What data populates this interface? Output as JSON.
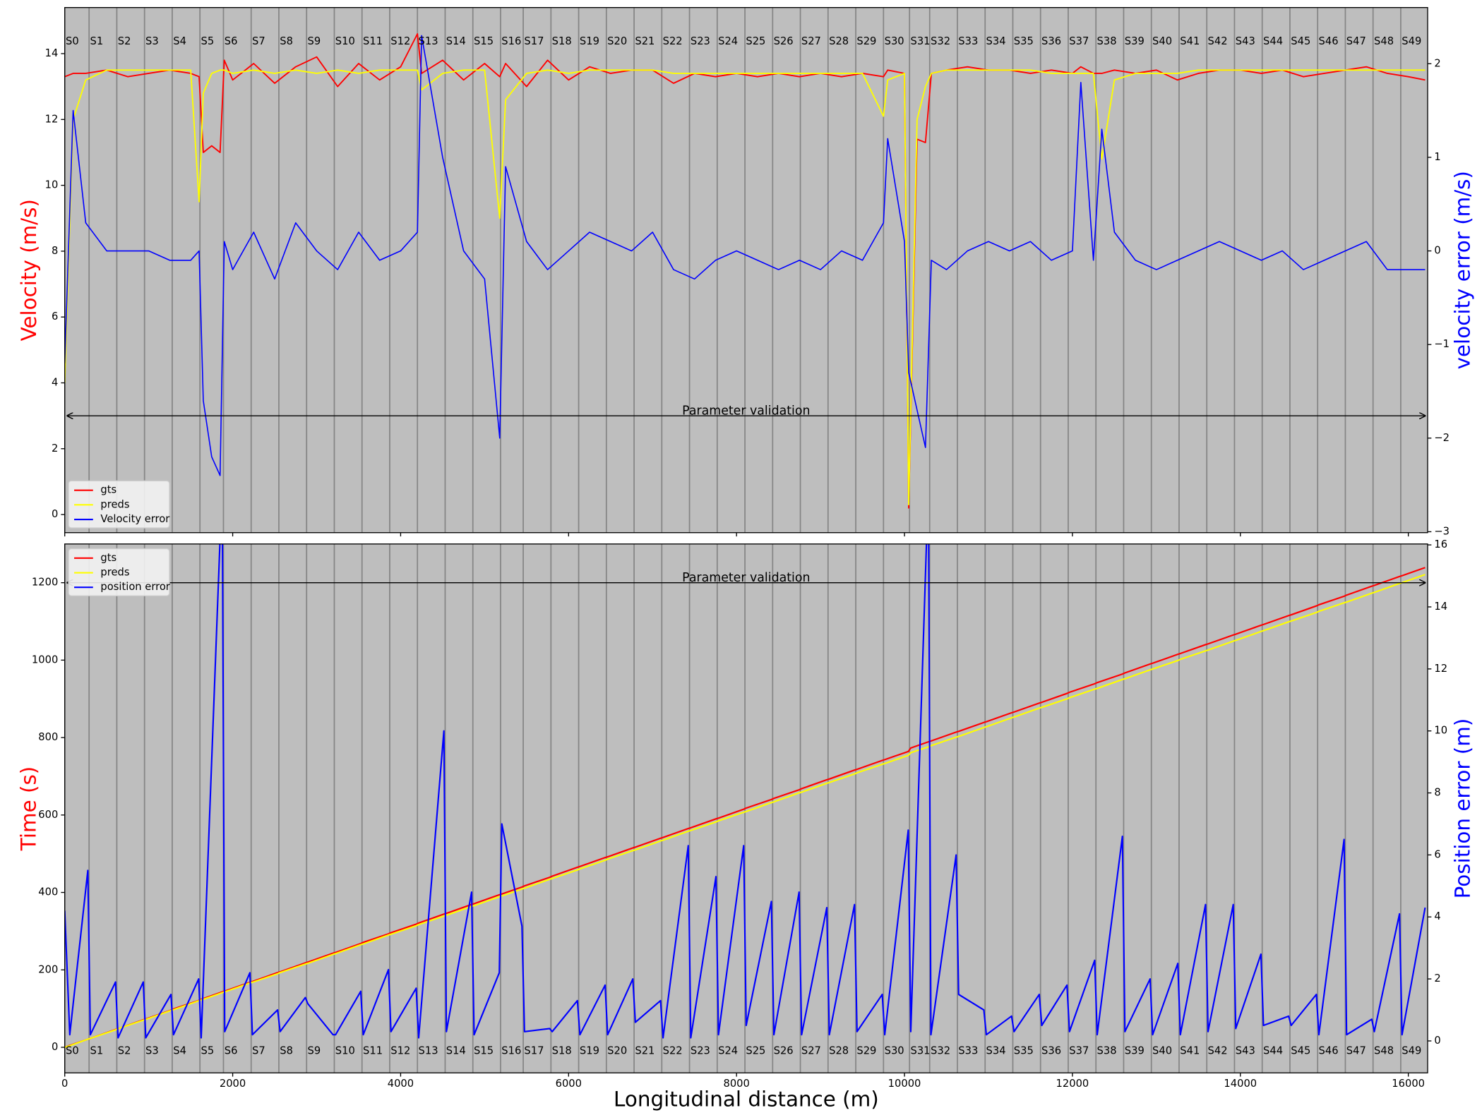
{
  "chart_data": [
    {
      "type": "line",
      "ylabel": "Velocity (m/s)",
      "y2label": "velocity error (m/s)",
      "background": "#bebebe",
      "legend": "lower left",
      "xlim": [
        0,
        16230
      ],
      "xticks": [
        0,
        2000,
        4000,
        6000,
        8000,
        10000,
        12000,
        14000,
        16000
      ],
      "ylim": [
        -0.55,
        15.4
      ],
      "yticks": [
        0,
        2,
        4,
        6,
        8,
        10,
        12,
        14
      ],
      "y2lim": [
        -3.01,
        2.6
      ],
      "y2ticks": [
        {
          "value": -3,
          "label": "−3"
        },
        {
          "value": -2,
          "label": "−2"
        },
        {
          "value": -1,
          "label": "−1"
        },
        0,
        1,
        2
      ],
      "annotation": {
        "text": "Parameter validation",
        "x": [
          0,
          16230
        ],
        "y": 3
      },
      "section_labels": [
        "S0",
        "S1",
        "S2",
        "S3",
        "S4",
        "S5",
        "S6",
        "S7",
        "S8",
        "S9",
        "S10",
        "S11",
        "S12",
        "S13",
        "S14",
        "S15",
        "S16",
        "S17",
        "S18",
        "S19",
        "S20",
        "S21",
        "S22",
        "S23",
        "S24",
        "S25",
        "S26",
        "S27",
        "S28",
        "S29",
        "S30",
        "S31",
        "S32",
        "S33",
        "S34",
        "S35",
        "S36",
        "S37",
        "S38",
        "S39",
        "S40",
        "S41",
        "S42",
        "S43",
        "S44",
        "S45",
        "S46",
        "S47",
        "S48",
        "S49"
      ],
      "section_starts": [
        0,
        290,
        620,
        950,
        1280,
        1610,
        1890,
        2220,
        2550,
        2880,
        3210,
        3540,
        3870,
        4200,
        4530,
        4860,
        5190,
        5460,
        5790,
        6120,
        6450,
        6780,
        7110,
        7440,
        7770,
        8100,
        8430,
        8760,
        9090,
        9420,
        9750,
        10060,
        10300,
        10630,
        10960,
        11290,
        11620,
        11950,
        12280,
        12610,
        12940,
        13270,
        13600,
        13930,
        14260,
        14590,
        14920,
        15250,
        15580,
        15910
      ],
      "x": [
        0,
        100,
        250,
        500,
        750,
        1000,
        1250,
        1500,
        1600,
        1650,
        1750,
        1850,
        1900,
        2000,
        2250,
        2500,
        2750,
        3000,
        3250,
        3500,
        3750,
        4000,
        4200,
        4250,
        4500,
        4750,
        5000,
        5180,
        5250,
        5500,
        5750,
        6000,
        6250,
        6500,
        6750,
        7000,
        7250,
        7500,
        7750,
        8000,
        8250,
        8500,
        8750,
        9000,
        9250,
        9500,
        9750,
        9800,
        10000,
        10050,
        10150,
        10250,
        10320,
        10500,
        10750,
        11000,
        11250,
        11500,
        11750,
        12000,
        12100,
        12250,
        12350,
        12500,
        12750,
        13000,
        13250,
        13500,
        13750,
        14000,
        14250,
        14500,
        14750,
        15000,
        15250,
        15500,
        15750,
        16000,
        16200
      ],
      "series": [
        {
          "name": "gts",
          "color": "#ff0000",
          "width": 1.4,
          "values": [
            13.3,
            13.4,
            13.4,
            13.5,
            13.3,
            13.4,
            13.5,
            13.4,
            13.3,
            11.0,
            11.2,
            11.0,
            13.8,
            13.2,
            13.7,
            13.1,
            13.6,
            13.9,
            13.0,
            13.7,
            13.2,
            13.6,
            14.6,
            13.4,
            13.8,
            13.2,
            13.7,
            13.3,
            13.7,
            13.0,
            13.8,
            13.2,
            13.6,
            13.4,
            13.5,
            13.5,
            13.1,
            13.4,
            13.3,
            13.4,
            13.3,
            13.4,
            13.3,
            13.4,
            13.3,
            13.4,
            13.3,
            13.5,
            13.4,
            0.2,
            11.4,
            11.3,
            13.4,
            13.5,
            13.6,
            13.5,
            13.5,
            13.4,
            13.5,
            13.4,
            13.6,
            13.4,
            13.4,
            13.5,
            13.4,
            13.5,
            13.2,
            13.4,
            13.5,
            13.5,
            13.4,
            13.5,
            13.3,
            13.4,
            13.5,
            13.6,
            13.4,
            13.3,
            13.2
          ]
        },
        {
          "name": "preds",
          "color": "#ffff00",
          "width": 1.4,
          "values": [
            4.0,
            12.0,
            13.2,
            13.5,
            13.5,
            13.5,
            13.5,
            13.5,
            9.5,
            12.8,
            13.4,
            13.5,
            13.5,
            13.4,
            13.5,
            13.4,
            13.5,
            13.4,
            13.5,
            13.4,
            13.5,
            13.5,
            13.5,
            12.9,
            13.4,
            13.5,
            13.5,
            9.0,
            12.6,
            13.4,
            13.5,
            13.4,
            13.5,
            13.5,
            13.5,
            13.5,
            13.4,
            13.4,
            13.4,
            13.4,
            13.4,
            13.4,
            13.4,
            13.4,
            13.4,
            13.4,
            12.1,
            13.2,
            13.4,
            0.3,
            12.0,
            13.0,
            13.4,
            13.5,
            13.5,
            13.5,
            13.5,
            13.5,
            13.4,
            13.4,
            13.4,
            13.4,
            10.8,
            13.2,
            13.4,
            13.4,
            13.4,
            13.5,
            13.5,
            13.5,
            13.5,
            13.5,
            13.5,
            13.5,
            13.5,
            13.5,
            13.5,
            13.5,
            13.5
          ]
        },
        {
          "name": "Velocity error",
          "color": "#0000ff",
          "width": 1.2,
          "axis": "y2",
          "values": [
            -1.2,
            1.5,
            0.3,
            0,
            0,
            0,
            -0.1,
            -0.1,
            0,
            -1.6,
            -2.2,
            -2.4,
            0.1,
            -0.2,
            0.2,
            -0.3,
            0.3,
            0,
            -0.2,
            0.2,
            -0.1,
            0,
            0.2,
            2.3,
            1.0,
            0,
            -0.3,
            -2.0,
            0.9,
            0.1,
            -0.2,
            0,
            0.2,
            0.1,
            0,
            0.2,
            -0.2,
            -0.3,
            -0.1,
            0,
            -0.1,
            -0.2,
            -0.1,
            -0.2,
            0,
            -0.1,
            0.3,
            1.2,
            0.1,
            -1.3,
            -1.7,
            -2.1,
            -0.1,
            -0.2,
            0,
            0.1,
            0,
            0.1,
            -0.1,
            0,
            1.8,
            -0.1,
            1.3,
            0.2,
            -0.1,
            -0.2,
            -0.1,
            0,
            0.1,
            0,
            -0.1,
            0,
            -0.2,
            -0.1,
            0,
            0.1,
            -0.2,
            -0.2,
            -0.2
          ]
        }
      ]
    },
    {
      "type": "line",
      "xlabel": "Longitudinal distance (m)",
      "ylabel": "Time (s)",
      "y2label": "Position error (m)",
      "background": "#bebebe",
      "legend": "upper left",
      "xlim": [
        0,
        16230
      ],
      "xticks": [
        0,
        2000,
        4000,
        6000,
        8000,
        10000,
        12000,
        14000,
        16000
      ],
      "ylim": [
        -66,
        1300
      ],
      "yticks": [
        0,
        200,
        400,
        600,
        800,
        1000,
        1200
      ],
      "y2lim": [
        -1.03,
        16.03
      ],
      "y2ticks": [
        0,
        2,
        4,
        6,
        8,
        10,
        12,
        14,
        16
      ],
      "annotation": {
        "text": "Parameter validation",
        "x": [
          0,
          16230
        ],
        "y": 1200
      },
      "section_labels": [
        "S0",
        "S1",
        "S2",
        "S3",
        "S4",
        "S5",
        "S6",
        "S7",
        "S8",
        "S9",
        "S10",
        "S11",
        "S12",
        "S13",
        "S14",
        "S15",
        "S16",
        "S17",
        "S18",
        "S19",
        "S20",
        "S21",
        "S22",
        "S23",
        "S24",
        "S25",
        "S26",
        "S27",
        "S28",
        "S29",
        "S30",
        "S31",
        "S32",
        "S33",
        "S34",
        "S35",
        "S36",
        "S37",
        "S38",
        "S39",
        "S40",
        "S41",
        "S42",
        "S43",
        "S44",
        "S45",
        "S46",
        "S47",
        "S48",
        "S49"
      ],
      "section_starts": [
        0,
        290,
        620,
        950,
        1280,
        1610,
        1890,
        2220,
        2550,
        2880,
        3210,
        3540,
        3870,
        4200,
        4530,
        4860,
        5190,
        5460,
        5790,
        6120,
        6450,
        6780,
        7110,
        7440,
        7770,
        8100,
        8430,
        8760,
        9090,
        9420,
        9750,
        10060,
        10300,
        10630,
        10960,
        11290,
        11620,
        11950,
        12280,
        12610,
        12940,
        13270,
        13600,
        13930,
        14260,
        14590,
        14920,
        15250,
        15580,
        15910
      ],
      "x": [
        0,
        60,
        275,
        305,
        605,
        635,
        935,
        965,
        1265,
        1295,
        1595,
        1625,
        1875,
        1905,
        2205,
        2235,
        2535,
        2565,
        2865,
        2895,
        3195,
        3225,
        3525,
        3555,
        3855,
        3885,
        4185,
        4215,
        4515,
        4545,
        4845,
        4875,
        5175,
        5205,
        5445,
        5475,
        5775,
        5805,
        6105,
        6135,
        6435,
        6465,
        6765,
        6795,
        7095,
        7125,
        7425,
        7455,
        7755,
        7785,
        8085,
        8115,
        8415,
        8445,
        8745,
        8775,
        9075,
        9105,
        9405,
        9435,
        9735,
        9765,
        10045,
        10075,
        10285,
        10315,
        10615,
        10645,
        10945,
        10975,
        11275,
        11305,
        11605,
        11635,
        11935,
        11965,
        12265,
        12295,
        12595,
        12625,
        12925,
        12955,
        13255,
        13285,
        13585,
        13615,
        13915,
        13945,
        14245,
        14275,
        14575,
        14605,
        14905,
        14935,
        15235,
        15265,
        15565,
        15595,
        15895,
        15925,
        16200
      ],
      "series": [
        {
          "name": "gts",
          "color": "#ff0000",
          "width": 1.6,
          "values": [
            0,
            5,
            21,
            23,
            46,
            48,
            71,
            73,
            96,
            99,
            121,
            124,
            143,
            145,
            168,
            170,
            193,
            195,
            218,
            220,
            243,
            245,
            268,
            271,
            293,
            296,
            318,
            321,
            344,
            346,
            369,
            371,
            394,
            396,
            414,
            417,
            439,
            442,
            465,
            467,
            490,
            492,
            515,
            517,
            540,
            542,
            565,
            567,
            590,
            592,
            615,
            618,
            640,
            643,
            665,
            668,
            691,
            693,
            716,
            718,
            741,
            743,
            764,
            773,
            789,
            791,
            814,
            816,
            839,
            841,
            864,
            866,
            889,
            891,
            914,
            917,
            939,
            942,
            964,
            967,
            990,
            992,
            1015,
            1017,
            1040,
            1042,
            1065,
            1067,
            1090,
            1092,
            1115,
            1117,
            1140,
            1143,
            1165,
            1168,
            1191,
            1193,
            1216,
            1218,
            1239
          ]
        },
        {
          "name": "preds",
          "color": "#ffff00",
          "width": 1.6,
          "values": [
            0,
            4,
            21,
            23,
            45,
            48,
            70,
            72,
            95,
            97,
            120,
            122,
            141,
            143,
            166,
            168,
            190,
            193,
            215,
            217,
            240,
            242,
            265,
            267,
            290,
            292,
            314,
            317,
            339,
            341,
            364,
            366,
            389,
            391,
            409,
            411,
            434,
            436,
            458,
            461,
            483,
            486,
            508,
            510,
            533,
            535,
            558,
            560,
            582,
            585,
            607,
            609,
            632,
            634,
            657,
            659,
            682,
            684,
            706,
            709,
            731,
            733,
            754,
            761,
            776,
            779,
            801,
            803,
            826,
            828,
            851,
            853,
            876,
            878,
            900,
            903,
            925,
            927,
            950,
            952,
            975,
            977,
            999,
            1002,
            1024,
            1026,
            1049,
            1051,
            1074,
            1076,
            1099,
            1101,
            1123,
            1126,
            1148,
            1150,
            1173,
            1175,
            1198,
            1200,
            1221
          ]
        },
        {
          "name": "position error",
          "color": "#0000ff",
          "width": 1.6,
          "axis": "y2",
          "values": [
            4.2,
            0.2,
            5.5,
            0.2,
            1.9,
            0.1,
            1.9,
            0.1,
            1.5,
            0.2,
            2.0,
            0.1,
            18,
            0.3,
            2.2,
            0.2,
            1.0,
            0.3,
            1.4,
            1.2,
            0.2,
            0.2,
            1.6,
            0.2,
            2.3,
            0.3,
            1.7,
            0.1,
            10.0,
            0.3,
            4.8,
            0.2,
            2.2,
            7.0,
            3.7,
            0.3,
            0.4,
            0.3,
            1.3,
            0.2,
            1.8,
            0.2,
            2.0,
            0.6,
            1.3,
            0.1,
            6.3,
            0.1,
            5.3,
            0.2,
            6.3,
            0.5,
            4.5,
            0.2,
            4.8,
            0.2,
            4.3,
            0.2,
            4.4,
            0.3,
            1.5,
            0.2,
            6.8,
            0.3,
            18,
            0.2,
            6.0,
            1.5,
            1.0,
            0.2,
            0.8,
            0.3,
            1.5,
            0.5,
            1.8,
            0.3,
            2.6,
            0.2,
            6.6,
            0.3,
            2.0,
            0.2,
            2.5,
            0.2,
            4.4,
            0.3,
            4.4,
            0.4,
            2.8,
            0.5,
            0.8,
            0.5,
            1.5,
            0.2,
            6.5,
            0.2,
            0.7,
            0.3,
            4.1,
            0.2,
            4.3
          ]
        }
      ]
    }
  ]
}
